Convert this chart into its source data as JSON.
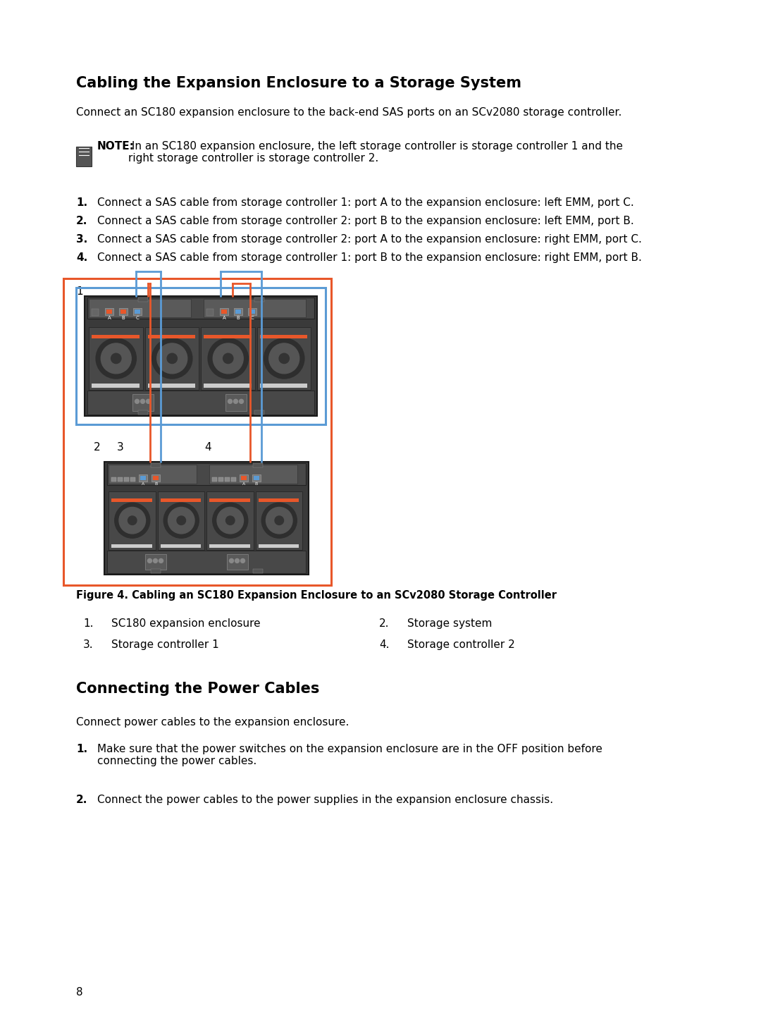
{
  "title1": "Cabling the Expansion Enclosure to a Storage System",
  "intro1": "Connect an SC180 expansion enclosure to the back-end SAS ports on an SCv2080 storage controller.",
  "note_bold": "NOTE:",
  "note_text": " In an SC180 expansion enclosure, the left storage controller is storage controller 1 and the\nright storage controller is storage controller 2.",
  "steps1": [
    "Connect a SAS cable from storage controller 1: port A to the expansion enclosure: left EMM, port C.",
    "Connect a SAS cable from storage controller 2: port B to the expansion enclosure: left EMM, port B.",
    "Connect a SAS cable from storage controller 2: port A to the expansion enclosure: right EMM, port C.",
    "Connect a SAS cable from storage controller 1: port B to the expansion enclosure: right EMM, port B."
  ],
  "figure_caption": "Figure 4. Cabling an SC180 Expansion Enclosure to an SCv2080 Storage Controller",
  "legend_items": [
    [
      "1.",
      "SC180 expansion enclosure",
      "2.",
      "Storage system"
    ],
    [
      "3.",
      "Storage controller 1",
      "4.",
      "Storage controller 2"
    ]
  ],
  "title2": "Connecting the Power Cables",
  "intro2": "Connect power cables to the expansion enclosure.",
  "steps2": [
    "Make sure that the power switches on the expansion enclosure are in the OFF position before\nconnecting the power cables.",
    "Connect the power cables to the power supplies in the expansion enclosure chassis."
  ],
  "page_number": "8",
  "bg_color": "#ffffff",
  "text_color": "#000000",
  "orange_color": "#e8572a",
  "blue_color": "#5b9bd5",
  "dark_gray": "#3a3a3a",
  "medium_gray": "#555555",
  "light_gray": "#888888"
}
